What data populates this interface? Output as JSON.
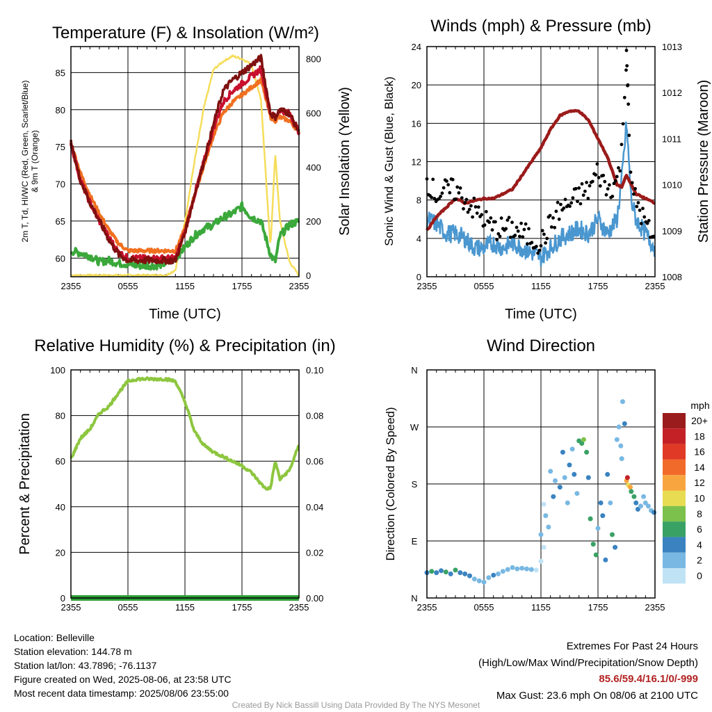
{
  "colors": {
    "temp_2m": "#c8102e",
    "dewpoint": "#3aa83a",
    "heat_index": "#7f1010",
    "temp_9m": "#f07020",
    "solar": "#f5dd5a",
    "wind": "#4a97d0",
    "gust": "#000000",
    "pressure": "#9b1b1b",
    "rh": "#8dc63f",
    "precip": "#2e9e3a"
  },
  "footer": {
    "location": "Location: Belleville",
    "elevation": "Station elevation: 144.78 m",
    "latlon": "Station lat/lon: 43.7896; -76.1137",
    "created": "Figure created on Wed, 2025-08-06, at 23:58 UTC",
    "recent": "Most recent data timestamp: 2025/08/06 23:55:00",
    "extremes_title": "Extremes For Past 24 Hours",
    "extremes_sub": "(High/Low/Max Wind/Precipitation/Snow Depth)",
    "extremes_values": "85.6/59.4/16.1/0/-999",
    "max_gust": "Max Gust: 23.6 mph On 08/06 at 2100 UTC",
    "credit": "Created By Nick Bassill Using Data Provided By The NYS Mesonet"
  },
  "chart_data": [
    {
      "type": "line",
      "title": "Temperature (F) & Insolation (W/m²)",
      "xlabel": "Time (UTC)",
      "ylabel": "2m T, Td, HI/WC (Red, Green, Scarlet/Blue) & 9m T (Orange)",
      "ylabel_right": "Solar Insolation (Yellow)",
      "x_ticks": [
        "2355",
        "0555",
        "1155",
        "1755",
        "2355"
      ],
      "ylim": [
        57.5,
        88.5
      ],
      "y_ticks": [
        60,
        65,
        70,
        75,
        80,
        85
      ],
      "ylim_right": [
        -5,
        845
      ],
      "y_ticks_right": [
        0,
        200,
        400,
        600,
        800
      ],
      "x_hours": [
        0,
        1,
        2,
        3,
        4,
        5,
        6,
        7,
        8,
        9,
        10,
        11,
        12,
        13,
        14,
        15,
        16,
        17,
        18,
        19,
        20,
        21,
        21.5,
        22,
        23,
        24
      ],
      "series": [
        {
          "key": "temp_9m",
          "axis": "left",
          "values": [
            75.5,
            71.5,
            68.5,
            66,
            63.8,
            62,
            61,
            61,
            61,
            61,
            61,
            61,
            64,
            68.5,
            72.5,
            76.5,
            79.5,
            81,
            82,
            83,
            84,
            79,
            78.5,
            79,
            78.5,
            77
          ]
        },
        {
          "key": "temp_2m",
          "axis": "left",
          "values": [
            75.5,
            70.5,
            67.5,
            65,
            62.8,
            60.8,
            60,
            60,
            60,
            60,
            60,
            60,
            63.5,
            68.5,
            73,
            77.5,
            81,
            82.5,
            83.5,
            84.5,
            85.5,
            79.5,
            79,
            80,
            79.5,
            77
          ]
        },
        {
          "key": "heat_index",
          "axis": "left",
          "values": [
            75.5,
            70.5,
            67.5,
            65,
            62.5,
            60.5,
            59.7,
            59.7,
            59.7,
            59.7,
            59.7,
            59.7,
            63.5,
            68.5,
            73,
            78,
            82.5,
            84,
            85,
            86,
            87,
            79.5,
            79,
            80,
            79.5,
            77
          ]
        },
        {
          "key": "dewpoint",
          "axis": "left",
          "values": [
            61,
            60.7,
            60.3,
            59.5,
            59.7,
            59.3,
            59.2,
            59,
            59,
            59,
            59.3,
            60,
            61.5,
            63,
            64,
            64.5,
            65.5,
            66,
            67,
            65.5,
            65,
            60.5,
            59.5,
            63,
            64.5,
            65
          ]
        },
        {
          "key": "solar",
          "axis": "right",
          "values": [
            0,
            0,
            0,
            0,
            0,
            0,
            0,
            0,
            0,
            0,
            0,
            20,
            200,
            420,
            620,
            760,
            790,
            810,
            800,
            780,
            650,
            100,
            450,
            200,
            50,
            0
          ]
        }
      ]
    },
    {
      "type": "line",
      "title": "Winds (mph) & Pressure (mb)",
      "xlabel": "Time (UTC)",
      "ylabel": "Sonic Wind & Gust (Blue, Black)",
      "ylabel_right": "Station Pressure (Maroon)",
      "x_ticks": [
        "2355",
        "0555",
        "1155",
        "1755",
        "2355"
      ],
      "ylim": [
        0,
        24
      ],
      "y_ticks": [
        0,
        4,
        8,
        12,
        16,
        20,
        24
      ],
      "ylim_right": [
        1008,
        1013
      ],
      "y_ticks_right": [
        1008,
        1009,
        1010,
        1011,
        1012,
        1013
      ],
      "x_hours": [
        0,
        1,
        2,
        3,
        4,
        5,
        6,
        7,
        8,
        9,
        10,
        11,
        12,
        13,
        14,
        15,
        16,
        17,
        18,
        19,
        20,
        20.5,
        21,
        21.5,
        22,
        23,
        24
      ],
      "series": [
        {
          "key": "wind",
          "axis": "left",
          "values": [
            6,
            5.5,
            4.5,
            4.5,
            4,
            3,
            3,
            3.5,
            3,
            3.5,
            3,
            2.5,
            2,
            3,
            4,
            4.5,
            5,
            4.5,
            6,
            4.5,
            6,
            10,
            16,
            8,
            6,
            4.5,
            3
          ]
        },
        {
          "key": "pressure",
          "axis": "right",
          "values": [
            1009.0,
            1009.3,
            1009.5,
            1009.7,
            1009.6,
            1009.65,
            1009.7,
            1009.7,
            1009.8,
            1009.9,
            1010.2,
            1010.5,
            1010.8,
            1011.2,
            1011.5,
            1011.6,
            1011.6,
            1011.4,
            1011.0,
            1010.6,
            1010.0,
            1009.95,
            1010.2,
            1010.0,
            1009.8,
            1009.7,
            1009.6
          ]
        },
        {
          "key": "gust",
          "axis": "left",
          "type": "scatter",
          "values": [
            10,
            8.5,
            9,
            9,
            8,
            7,
            6,
            5,
            5,
            5,
            4.5,
            4,
            3.5,
            5.5,
            7,
            7.5,
            8.5,
            9,
            11,
            9,
            10,
            13,
            23.6,
            9,
            8,
            5.5,
            3.5
          ]
        }
      ]
    },
    {
      "type": "line",
      "title": "Relative Humidity (%) & Precipitation (in)",
      "xlabel": "",
      "ylabel": "Percent & Precipitation",
      "x_ticks": [
        "2355",
        "0555",
        "1155",
        "1755",
        "2355"
      ],
      "ylim": [
        0,
        100
      ],
      "y_ticks": [
        0,
        20,
        40,
        60,
        80,
        100
      ],
      "ylim_right": [
        0,
        0.1
      ],
      "y_ticks_right": [
        "0.00",
        "0.02",
        "0.04",
        "0.06",
        "0.08",
        "0.10"
      ],
      "x_hours": [
        0,
        1,
        2,
        3,
        4,
        5,
        6,
        7,
        8,
        9,
        10,
        11,
        12,
        13,
        14,
        15,
        16,
        17,
        18,
        19,
        20,
        20.5,
        21,
        21.5,
        22,
        23,
        24
      ],
      "series": [
        {
          "key": "rh",
          "axis": "left",
          "values": [
            61,
            70,
            74,
            81,
            84,
            90,
            95,
            96,
            96,
            96,
            96,
            95,
            86,
            73,
            67,
            64,
            62,
            60,
            58,
            55,
            50,
            48,
            48,
            60,
            52,
            56,
            67
          ]
        },
        {
          "key": "precip",
          "axis": "right",
          "values": [
            0,
            0,
            0,
            0,
            0,
            0,
            0,
            0,
            0,
            0,
            0,
            0,
            0,
            0,
            0,
            0,
            0,
            0,
            0,
            0,
            0,
            0,
            0,
            0,
            0,
            0,
            0
          ]
        }
      ]
    },
    {
      "type": "scatter",
      "title": "Wind Direction",
      "ylabel": "Direction (Colored By Speed)",
      "x_ticks": [
        "2355",
        "0555",
        "1155",
        "1755",
        "2355"
      ],
      "y_ticks": [
        "N",
        "E",
        "S",
        "W",
        "N"
      ],
      "ylim": [
        0,
        360
      ],
      "legend_title": "mph",
      "legend_labels": [
        "20+",
        "18",
        "16",
        "14",
        "12",
        "10",
        "8",
        "6",
        "4",
        "2",
        "0"
      ],
      "legend_colors": [
        "#9b1c1c",
        "#c42127",
        "#e03a27",
        "#f26a2a",
        "#f8a540",
        "#e8dc52",
        "#7cc14b",
        "#3aa165",
        "#3a83c0",
        "#78b8e3",
        "#bfe3f5"
      ],
      "points": [
        {
          "h": 0.0,
          "dir": 40,
          "spd": 5
        },
        {
          "h": 0.5,
          "dir": 42,
          "spd": 7
        },
        {
          "h": 1.0,
          "dir": 40,
          "spd": 5
        },
        {
          "h": 1.5,
          "dir": 43,
          "spd": 4
        },
        {
          "h": 2.0,
          "dir": 41,
          "spd": 7
        },
        {
          "h": 2.5,
          "dir": 38,
          "spd": 5
        },
        {
          "h": 3.0,
          "dir": 44,
          "spd": 6
        },
        {
          "h": 3.5,
          "dir": 40,
          "spd": 4
        },
        {
          "h": 4.0,
          "dir": 38,
          "spd": 4
        },
        {
          "h": 4.5,
          "dir": 35,
          "spd": 4
        },
        {
          "h": 5.0,
          "dir": 30,
          "spd": 3
        },
        {
          "h": 5.5,
          "dir": 27,
          "spd": 3
        },
        {
          "h": 6.0,
          "dir": 25,
          "spd": 2
        },
        {
          "h": 6.5,
          "dir": 32,
          "spd": 3
        },
        {
          "h": 7.0,
          "dir": 36,
          "spd": 4
        },
        {
          "h": 7.5,
          "dir": 38,
          "spd": 3
        },
        {
          "h": 8.0,
          "dir": 42,
          "spd": 3
        },
        {
          "h": 8.5,
          "dir": 45,
          "spd": 3
        },
        {
          "h": 9.0,
          "dir": 48,
          "spd": 3
        },
        {
          "h": 9.5,
          "dir": 46,
          "spd": 2
        },
        {
          "h": 10.0,
          "dir": 47,
          "spd": 3
        },
        {
          "h": 10.5,
          "dir": 46,
          "spd": 2
        },
        {
          "h": 11.0,
          "dir": 45,
          "spd": 2
        },
        {
          "h": 11.5,
          "dir": 44,
          "spd": 1
        },
        {
          "h": 12.0,
          "dir": 58,
          "spd": 1
        },
        {
          "h": 12.3,
          "dir": 80,
          "spd": 1
        },
        {
          "h": 12.0,
          "dir": 100,
          "spd": 2
        },
        {
          "h": 12.3,
          "dir": 148,
          "spd": 1
        },
        {
          "h": 12.5,
          "dir": 130,
          "spd": 2
        },
        {
          "h": 12.8,
          "dir": 112,
          "spd": 2
        },
        {
          "h": 13.0,
          "dir": 200,
          "spd": 3
        },
        {
          "h": 13.3,
          "dir": 160,
          "spd": 4
        },
        {
          "h": 13.5,
          "dir": 185,
          "spd": 3
        },
        {
          "h": 14.0,
          "dir": 175,
          "spd": 4
        },
        {
          "h": 14.3,
          "dir": 230,
          "spd": 4
        },
        {
          "h": 14.5,
          "dir": 190,
          "spd": 3
        },
        {
          "h": 14.8,
          "dir": 150,
          "spd": 2
        },
        {
          "h": 15.0,
          "dir": 210,
          "spd": 4
        },
        {
          "h": 15.3,
          "dir": 235,
          "spd": 3
        },
        {
          "h": 15.5,
          "dir": 195,
          "spd": 4
        },
        {
          "h": 15.8,
          "dir": 165,
          "spd": 3
        },
        {
          "h": 16.0,
          "dir": 248,
          "spd": 7
        },
        {
          "h": 16.3,
          "dir": 244,
          "spd": 6
        },
        {
          "h": 16.5,
          "dir": 250,
          "spd": 9
        },
        {
          "h": 16.8,
          "dir": 230,
          "spd": 7
        },
        {
          "h": 17.0,
          "dir": 190,
          "spd": 4
        },
        {
          "h": 17.2,
          "dir": 125,
          "spd": 6
        },
        {
          "h": 17.5,
          "dir": 85,
          "spd": 7
        },
        {
          "h": 17.8,
          "dir": 68,
          "spd": 6
        },
        {
          "h": 18.0,
          "dir": 110,
          "spd": 3
        },
        {
          "h": 18.3,
          "dir": 150,
          "spd": 4
        },
        {
          "h": 18.5,
          "dir": 130,
          "spd": 5
        },
        {
          "h": 18.8,
          "dir": 60,
          "spd": 4
        },
        {
          "h": 19.0,
          "dir": 195,
          "spd": 5
        },
        {
          "h": 19.3,
          "dir": 150,
          "spd": 3
        },
        {
          "h": 19.5,
          "dir": 100,
          "spd": 6
        },
        {
          "h": 19.8,
          "dir": 80,
          "spd": 5
        },
        {
          "h": 20.0,
          "dir": 250,
          "spd": 3
        },
        {
          "h": 20.2,
          "dir": 270,
          "spd": 3
        },
        {
          "h": 20.4,
          "dir": 240,
          "spd": 2
        },
        {
          "h": 20.5,
          "dir": 220,
          "spd": 2
        },
        {
          "h": 20.6,
          "dir": 310,
          "spd": 3
        },
        {
          "h": 20.8,
          "dir": 275,
          "spd": 5
        },
        {
          "h": 21.0,
          "dir": 185,
          "spd": 12
        },
        {
          "h": 21.1,
          "dir": 190,
          "spd": 18
        },
        {
          "h": 21.2,
          "dir": 178,
          "spd": 10
        },
        {
          "h": 21.4,
          "dir": 175,
          "spd": 12
        },
        {
          "h": 21.5,
          "dir": 168,
          "spd": 7
        },
        {
          "h": 21.8,
          "dir": 160,
          "spd": 6
        },
        {
          "h": 22.0,
          "dir": 150,
          "spd": 4
        },
        {
          "h": 22.2,
          "dir": 140,
          "spd": 5
        },
        {
          "h": 22.5,
          "dir": 145,
          "spd": 3
        },
        {
          "h": 22.8,
          "dir": 160,
          "spd": 2
        },
        {
          "h": 23.0,
          "dir": 150,
          "spd": 2
        },
        {
          "h": 23.3,
          "dir": 145,
          "spd": 3
        },
        {
          "h": 23.6,
          "dir": 138,
          "spd": 3
        },
        {
          "h": 23.9,
          "dir": 135,
          "spd": 4
        }
      ]
    }
  ]
}
